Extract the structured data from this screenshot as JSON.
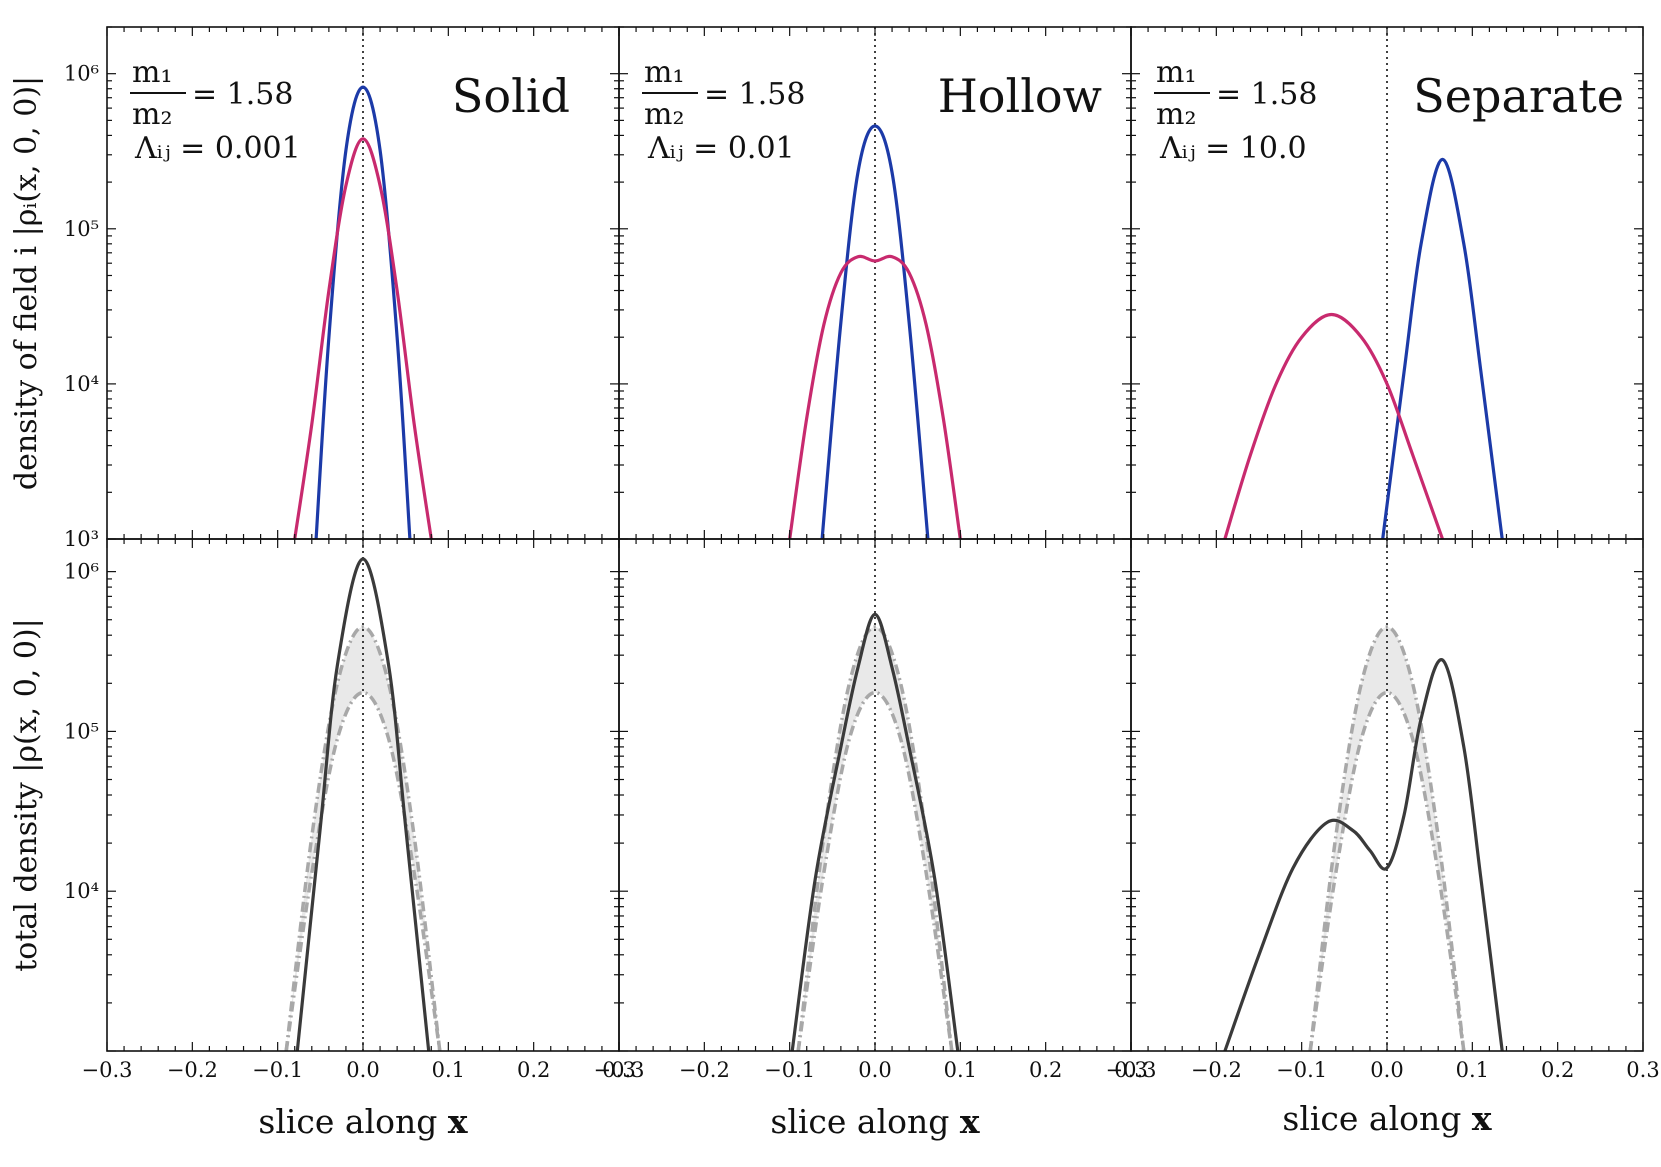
{
  "figure": {
    "y_axis_labels": {
      "top": "density of field i |ρᵢ(x, 0, 0)|",
      "bottom": "total density |ρ(x, 0, 0)|"
    },
    "x_axis_label_prefix": "slice along",
    "x_axis_label_bold": "x",
    "annotations": [
      {
        "panel": "Solid",
        "mass_ratio_num": "m₁",
        "mass_ratio_den": "m₂",
        "mass_ratio_value": "= 1.58",
        "lambda_text": "Λᵢⱼ = 0.001"
      },
      {
        "panel": "Hollow",
        "mass_ratio_num": "m₁",
        "mass_ratio_den": "m₂",
        "mass_ratio_value": "= 1.58",
        "lambda_text": "Λᵢⱼ = 0.01"
      },
      {
        "panel": "Separate",
        "mass_ratio_num": "m₁",
        "mass_ratio_den": "m₂",
        "mass_ratio_value": "= 1.58",
        "lambda_text": "Λᵢⱼ = 10.0"
      }
    ]
  },
  "chart_data": [
    {
      "type": "line",
      "panel": "Solid (top)",
      "title": "Solid",
      "yscale": "log",
      "xlim": [
        -0.3,
        0.3
      ],
      "ylim": [
        1000,
        2000000
      ],
      "x_ticks": [
        -0.3,
        -0.2,
        -0.1,
        0.0,
        0.1,
        0.2,
        0.3
      ],
      "y_tick_labels": [
        "10³",
        "10⁴",
        "10⁵",
        "10⁶"
      ],
      "vline_x": 0.0,
      "series": [
        {
          "color": "#1c3aa8",
          "x": [
            -0.055,
            -0.04,
            -0.02,
            0.0,
            0.02,
            0.04,
            0.055
          ],
          "y": [
            1000,
            20000,
            320000,
            820000,
            320000,
            20000,
            1000
          ]
        },
        {
          "color": "#c82a6e",
          "x": [
            -0.08,
            -0.06,
            -0.04,
            -0.02,
            0.0,
            0.02,
            0.04,
            0.06,
            0.08
          ],
          "y": [
            1000,
            5500,
            40000,
            190000,
            380000,
            190000,
            40000,
            5500,
            1000
          ]
        }
      ]
    },
    {
      "type": "line",
      "panel": "Hollow (top)",
      "title": "Hollow",
      "yscale": "log",
      "xlim": [
        -0.3,
        0.3
      ],
      "ylim": [
        1000,
        2000000
      ],
      "x_ticks": [
        -0.3,
        -0.2,
        -0.1,
        0.0,
        0.1,
        0.2,
        0.3
      ],
      "y_tick_labels": [
        "10³",
        "10⁴",
        "10⁵",
        "10⁶"
      ],
      "vline_x": 0.0,
      "series": [
        {
          "color": "#1c3aa8",
          "x": [
            -0.062,
            -0.04,
            -0.02,
            0.0,
            0.02,
            0.04,
            0.062
          ],
          "y": [
            1000,
            25000,
            230000,
            460000,
            230000,
            25000,
            1000
          ]
        },
        {
          "color": "#c82a6e",
          "x": [
            -0.1,
            -0.08,
            -0.06,
            -0.04,
            -0.02,
            0.0,
            0.02,
            0.04,
            0.06,
            0.08,
            0.1
          ],
          "y": [
            1000,
            6000,
            24000,
            52000,
            66000,
            62000,
            66000,
            52000,
            24000,
            6000,
            1000
          ]
        }
      ]
    },
    {
      "type": "line",
      "panel": "Separate (top)",
      "title": "Separate",
      "yscale": "log",
      "xlim": [
        -0.3,
        0.3
      ],
      "ylim": [
        1000,
        2000000
      ],
      "x_ticks": [
        -0.3,
        -0.2,
        -0.1,
        0.0,
        0.1,
        0.2,
        0.3
      ],
      "y_tick_labels": [
        "10³",
        "10⁴",
        "10⁵",
        "10⁶"
      ],
      "vline_x": 0.0,
      "series": [
        {
          "color": "#1c3aa8",
          "x": [
            -0.005,
            0.02,
            0.04,
            0.065,
            0.09,
            0.11,
            0.135
          ],
          "y": [
            1000,
            12000,
            80000,
            280000,
            80000,
            12000,
            1000
          ]
        },
        {
          "color": "#c82a6e",
          "x": [
            -0.19,
            -0.16,
            -0.13,
            -0.1,
            -0.065,
            -0.03,
            0.0,
            0.03,
            0.065
          ],
          "y": [
            1000,
            3500,
            10000,
            20000,
            28000,
            20000,
            10000,
            3500,
            1000
          ]
        }
      ]
    },
    {
      "type": "area",
      "panel": "Solid (bottom)",
      "yscale": "log",
      "xlim": [
        -0.3,
        0.3
      ],
      "ylim": [
        1000,
        1600000
      ],
      "x_ticks": [
        -0.3,
        -0.2,
        -0.1,
        0.0,
        0.1,
        0.2,
        0.3
      ],
      "x_tick_labels": [
        "−0.3",
        "−0.2",
        "−0.1",
        "0.0",
        "0.1",
        "0.2",
        "0.3"
      ],
      "y_tick_labels": [
        "10⁴",
        "10⁵",
        "10⁶"
      ],
      "vline_x": 0.0,
      "band_upper": {
        "x": [
          -0.09,
          -0.06,
          -0.03,
          0.0,
          0.03,
          0.06,
          0.09
        ],
        "y": [
          1000,
          22000,
          200000,
          450000,
          200000,
          22000,
          1000
        ]
      },
      "band_lower": {
        "x": [
          -0.09,
          -0.06,
          -0.03,
          0.0,
          0.03,
          0.06,
          0.09
        ],
        "y": [
          1000,
          13000,
          90000,
          175000,
          90000,
          13000,
          1000
        ]
      },
      "series": [
        {
          "color": "#3a3a3a",
          "x": [
            -0.077,
            -0.05,
            -0.03,
            0.0,
            0.03,
            0.05,
            0.077
          ],
          "y": [
            1000,
            25000,
            260000,
            1200000,
            260000,
            25000,
            1000
          ]
        }
      ]
    },
    {
      "type": "area",
      "panel": "Hollow (bottom)",
      "yscale": "log",
      "xlim": [
        -0.3,
        0.3
      ],
      "ylim": [
        1000,
        1600000
      ],
      "x_ticks": [
        -0.3,
        -0.2,
        -0.1,
        0.0,
        0.1,
        0.2,
        0.3
      ],
      "x_tick_labels": [
        "−0.3",
        "−0.2",
        "−0.1",
        "0.0",
        "0.1",
        "0.2",
        "0.3"
      ],
      "vline_x": 0.0,
      "band_upper": {
        "x": [
          -0.09,
          -0.06,
          -0.03,
          0.0,
          0.03,
          0.06,
          0.09
        ],
        "y": [
          1000,
          22000,
          200000,
          450000,
          200000,
          22000,
          1000
        ]
      },
      "band_lower": {
        "x": [
          -0.09,
          -0.06,
          -0.03,
          0.0,
          0.03,
          0.06,
          0.09
        ],
        "y": [
          1000,
          13000,
          90000,
          175000,
          90000,
          13000,
          1000
        ]
      },
      "series": [
        {
          "color": "#3a3a3a",
          "x": [
            -0.097,
            -0.07,
            -0.04,
            -0.02,
            0.0,
            0.02,
            0.04,
            0.07,
            0.097
          ],
          "y": [
            1000,
            12000,
            80000,
            250000,
            540000,
            250000,
            80000,
            12000,
            1000
          ]
        }
      ]
    },
    {
      "type": "area",
      "panel": "Separate (bottom)",
      "yscale": "log",
      "xlim": [
        -0.3,
        0.3
      ],
      "ylim": [
        1000,
        1600000
      ],
      "x_ticks": [
        -0.3,
        -0.2,
        -0.1,
        0.0,
        0.1,
        0.2,
        0.3
      ],
      "x_tick_labels": [
        "−0.3",
        "−0.2",
        "−0.1",
        "0.0",
        "0.1",
        "0.2",
        "0.3"
      ],
      "vline_x": 0.0,
      "band_upper": {
        "x": [
          -0.09,
          -0.06,
          -0.03,
          0.0,
          0.03,
          0.06,
          0.09
        ],
        "y": [
          1000,
          22000,
          200000,
          450000,
          200000,
          22000,
          1000
        ]
      },
      "band_lower": {
        "x": [
          -0.09,
          -0.06,
          -0.03,
          0.0,
          0.03,
          0.06,
          0.09
        ],
        "y": [
          1000,
          13000,
          90000,
          175000,
          90000,
          13000,
          1000
        ]
      },
      "series": [
        {
          "color": "#3a3a3a",
          "x": [
            -0.19,
            -0.15,
            -0.11,
            -0.07,
            -0.04,
            -0.02,
            0.0,
            0.02,
            0.04,
            0.065,
            0.09,
            0.11,
            0.135
          ],
          "y": [
            1000,
            4000,
            14000,
            27000,
            24000,
            18000,
            14000,
            30000,
            120000,
            280000,
            80000,
            12000,
            1000
          ]
        }
      ]
    }
  ]
}
